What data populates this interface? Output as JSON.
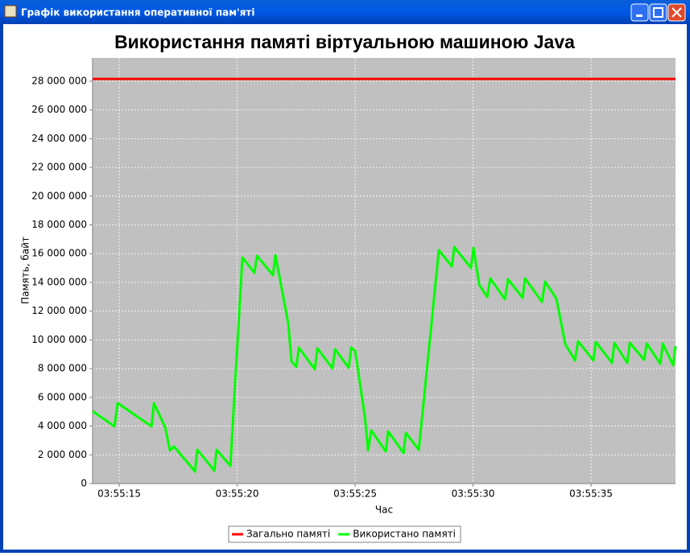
{
  "window": {
    "title": "Графік використання оперативної пам'яті"
  },
  "chart_data": {
    "type": "line",
    "title": "Використання памяті віртуальною машиною Java",
    "x_label": "Час",
    "y_label": "Память, байт",
    "x": [
      13.87,
      14.8,
      14.93,
      16.37,
      16.47,
      16.95,
      17.15,
      17.32,
      18.21,
      18.31,
      19.03,
      19.13,
      19.71,
      20.22,
      20.73,
      20.84,
      21.52,
      21.62,
      22.17,
      22.3,
      22.51,
      22.61,
      23.29,
      23.4,
      24.04,
      24.15,
      24.73,
      24.83,
      25.0,
      25.41,
      25.55,
      25.68,
      26.3,
      26.4,
      27.05,
      27.15,
      27.7,
      28.55,
      29.1,
      29.2,
      29.91,
      30.02,
      30.26,
      30.6,
      30.73,
      31.35,
      31.48,
      32.1,
      32.2,
      32.92,
      33.05,
      33.53,
      33.91,
      34.32,
      34.45,
      35.1,
      35.2,
      35.89,
      35.99,
      36.54,
      36.64,
      37.25,
      37.36,
      37.94,
      38.04,
      38.48,
      38.58
    ],
    "series": [
      {
        "name": "Загально памяті",
        "color": "#ff0000",
        "values": [
          28160000,
          28160000,
          28160000,
          28160000,
          28160000,
          28160000,
          28160000,
          28160000,
          28160000,
          28160000,
          28160000,
          28160000,
          28160000,
          28160000,
          28160000,
          28160000,
          28160000,
          28160000,
          28160000,
          28160000,
          28160000,
          28160000,
          28160000,
          28160000,
          28160000,
          28160000,
          28160000,
          28160000,
          28160000,
          28160000,
          28160000,
          28160000,
          28160000,
          28160000,
          28160000,
          28160000,
          28160000,
          28160000,
          28160000,
          28160000,
          28160000,
          28160000,
          28160000,
          28160000,
          28160000,
          28160000,
          28160000,
          28160000,
          28160000,
          28160000,
          28160000,
          28160000,
          28160000,
          28160000,
          28160000,
          28160000,
          28160000,
          28160000,
          28160000,
          28160000,
          28160000,
          28160000,
          28160000,
          28160000,
          28160000,
          28160000,
          28160000
        ]
      },
      {
        "name": "Використано памяті",
        "color": "#00ff00",
        "values": [
          5040000,
          3980000,
          5600000,
          3980000,
          5600000,
          3920000,
          2300000,
          2580000,
          840000,
          2350000,
          900000,
          2350000,
          1230000,
          15730000,
          14670000,
          15850000,
          14500000,
          15900000,
          11090000,
          8510000,
          8120000,
          9460000,
          7950000,
          9410000,
          8010000,
          9350000,
          8060000,
          9460000,
          9240000,
          4700000,
          2300000,
          3700000,
          2240000,
          3640000,
          2130000,
          3530000,
          2350000,
          16240000,
          15120000,
          16460000,
          15010000,
          16410000,
          13830000,
          12990000,
          14280000,
          12820000,
          14220000,
          12930000,
          14280000,
          12650000,
          14050000,
          12880000,
          9690000,
          8570000,
          9910000,
          8570000,
          9860000,
          8400000,
          9800000,
          8400000,
          9800000,
          8620000,
          9740000,
          8340000,
          9740000,
          8230000,
          9570000
        ]
      }
    ],
    "xlim": [
      13.87,
      38.58
    ],
    "ylim": [
      0,
      29620000
    ],
    "xticks": [
      {
        "value": 15,
        "label": "03:55:15"
      },
      {
        "value": 20,
        "label": "03:55:20"
      },
      {
        "value": 25,
        "label": "03:55:25"
      },
      {
        "value": 30,
        "label": "03:55:30"
      },
      {
        "value": 35,
        "label": "03:55:35"
      }
    ],
    "yticks": [
      0,
      {
        "value": 2000000,
        "label": "2 000 000"
      },
      {
        "value": 4000000,
        "label": "4 000 000"
      },
      {
        "value": 6000000,
        "label": "6 000 000"
      },
      {
        "value": 8000000,
        "label": "8 000 000"
      },
      {
        "value": 10000000,
        "label": "10 000 000"
      },
      {
        "value": 12000000,
        "label": "12 000 000"
      },
      {
        "value": 14000000,
        "label": "14 000 000"
      },
      {
        "value": 16000000,
        "label": "16 000 000"
      },
      {
        "value": 18000000,
        "label": "18 000 000"
      },
      {
        "value": 20000000,
        "label": "20 000 000"
      },
      {
        "value": 22000000,
        "label": "22 000 000"
      },
      {
        "value": 24000000,
        "label": "24 000 000"
      },
      {
        "value": 26000000,
        "label": "26 000 000"
      },
      {
        "value": 28000000,
        "label": "28 000 000"
      }
    ],
    "grid": true,
    "legend": "bottom"
  }
}
